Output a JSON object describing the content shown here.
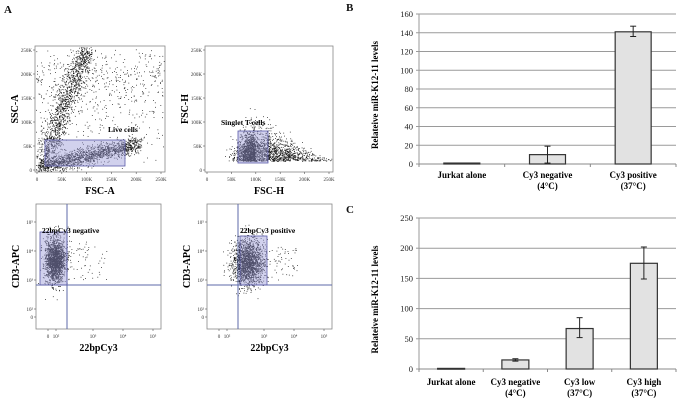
{
  "panels": {
    "A": {
      "label": "A"
    },
    "B": {
      "label": "B"
    },
    "C": {
      "label": "C"
    }
  },
  "flow_plots": [
    {
      "id": "ssc-fsc",
      "xlabel": "FSC-A",
      "ylabel": "SSC-A",
      "xticks": [
        "0",
        "50K",
        "100K",
        "150K",
        "200K",
        "250K"
      ],
      "yticks": [
        "0",
        "50K",
        "100K",
        "150K",
        "200K",
        "250K"
      ],
      "gate_label": "Live cells"
    },
    {
      "id": "fsch-fsch",
      "xlabel": "FSC-H",
      "ylabel": "FSC-H",
      "xticks": [
        "0",
        "50K",
        "100K",
        "150K",
        "200K",
        "250K"
      ],
      "yticks": [
        "0",
        "50K",
        "100K",
        "150K",
        "200K",
        "250K"
      ],
      "gate_label": "Singlet T-cells"
    },
    {
      "id": "cd3-cy3-neg",
      "xlabel": "22bpCy3",
      "ylabel": "CD3-APC",
      "xticks": [
        "0",
        "10²",
        "10³",
        "10⁴",
        "10⁵"
      ],
      "yticks": [
        "0",
        "10²",
        "10³",
        "10⁴",
        "10⁵"
      ],
      "gate_label": "22bpCy3 negative"
    },
    {
      "id": "cd3-cy3-pos",
      "xlabel": "22bpCy3",
      "ylabel": "CD3-APC",
      "xticks": [
        "0",
        "10²",
        "10³",
        "10⁴",
        "10⁵"
      ],
      "yticks": [
        "0",
        "10²",
        "10³",
        "10⁴",
        "10⁵"
      ],
      "gate_label": "22bpCy3 positive"
    }
  ],
  "colors": {
    "bar_fill": "#e2e2e2",
    "bar_stroke": "#333333",
    "grid": "#9a9a9a",
    "gate_fill": "#9a9ad6",
    "gate_stroke": "#5a5aa8",
    "quadrant_line": "#5c6aa8"
  },
  "chart_data": [
    {
      "panel": "B",
      "type": "bar",
      "title": "",
      "xlabel": "",
      "ylabel": "Relateive  miR-K12-11  levels",
      "categories": [
        "Jurkat alone",
        "Cy3 negative (4°C)",
        "Cy3 positive (37°C)"
      ],
      "category_lines": [
        [
          "Jurkat alone"
        ],
        [
          "Cy3 negative",
          "(4°C)"
        ],
        [
          "Cy3 positive",
          "(37°C)"
        ]
      ],
      "values": [
        1,
        10,
        141
      ],
      "error": [
        [
          1,
          1
        ],
        [
          1,
          19
        ],
        [
          136,
          147
        ]
      ],
      "ylim": [
        0,
        160
      ],
      "yticks": [
        0,
        20,
        40,
        60,
        80,
        100,
        120,
        140,
        160
      ],
      "grid": true,
      "legend": null
    },
    {
      "panel": "C",
      "type": "bar",
      "title": "",
      "xlabel": "",
      "ylabel": "Relateive  miR-K12-11  levels",
      "categories": [
        "Jurkat alone",
        "Cy3 negative (4°C)",
        "Cy3 low (37°C)",
        "Cy3 high (37°C)"
      ],
      "category_lines": [
        [
          "Jurkat alone"
        ],
        [
          "Cy3 negative",
          "(4°C)"
        ],
        [
          "Cy3 low",
          "(37°C)"
        ],
        [
          "Cy3 high",
          "(37°C)"
        ]
      ],
      "values": [
        1,
        15,
        67,
        175
      ],
      "error": [
        [
          1,
          1
        ],
        [
          13,
          17
        ],
        [
          52,
          85
        ],
        [
          149,
          202
        ]
      ],
      "ylim": [
        0,
        250
      ],
      "yticks": [
        0,
        50,
        100,
        150,
        200,
        250
      ],
      "grid": true,
      "legend": null
    }
  ]
}
